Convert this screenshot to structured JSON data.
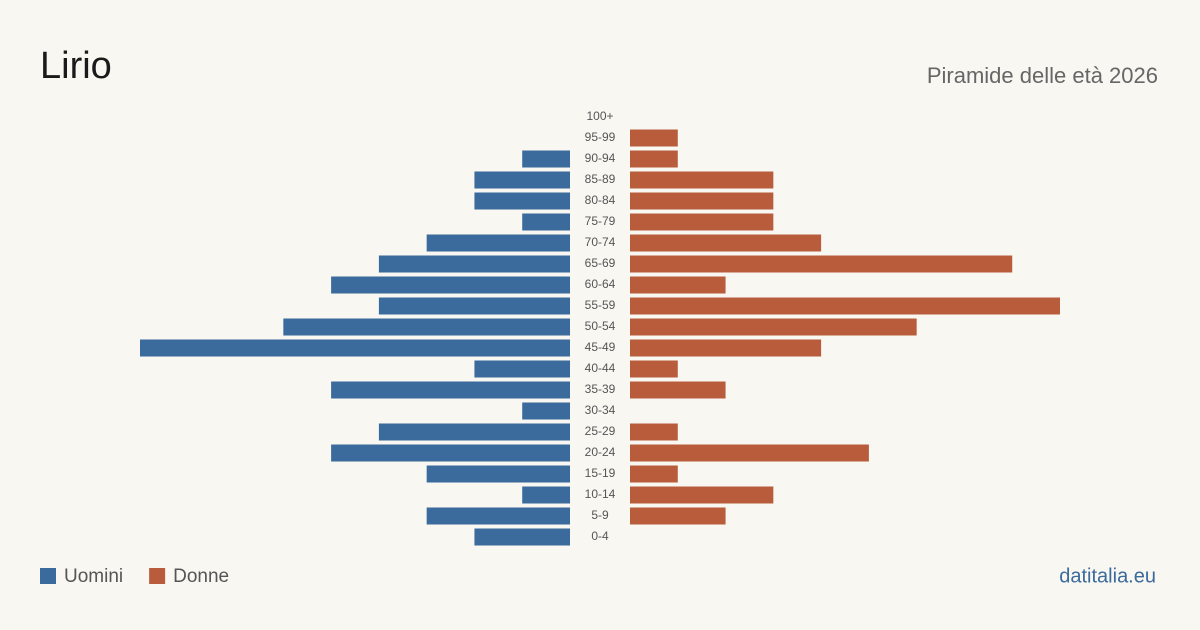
{
  "chart_data": {
    "type": "pyramid",
    "title": "Lirio",
    "subtitle": "Piramide delle età 2026",
    "source": "datitalia.eu",
    "categories": [
      "100+",
      "95-99",
      "90-94",
      "85-89",
      "80-84",
      "75-79",
      "70-74",
      "65-69",
      "60-64",
      "55-59",
      "50-54",
      "45-49",
      "40-44",
      "35-39",
      "30-34",
      "25-29",
      "20-24",
      "15-19",
      "10-14",
      "5-9",
      "0-4"
    ],
    "series": [
      {
        "name": "Uomini",
        "color": "#3b6a9c",
        "values": [
          0,
          0,
          1,
          2,
          2,
          1,
          3,
          4,
          5,
          4,
          6,
          9,
          2,
          5,
          1,
          4,
          5,
          3,
          1,
          3,
          2
        ]
      },
      {
        "name": "Donne",
        "color": "#b85c3c",
        "values": [
          0,
          1,
          1,
          3,
          3,
          3,
          4,
          8,
          2,
          9,
          6,
          4,
          1,
          2,
          0,
          1,
          5,
          1,
          3,
          2,
          0
        ]
      }
    ]
  }
}
